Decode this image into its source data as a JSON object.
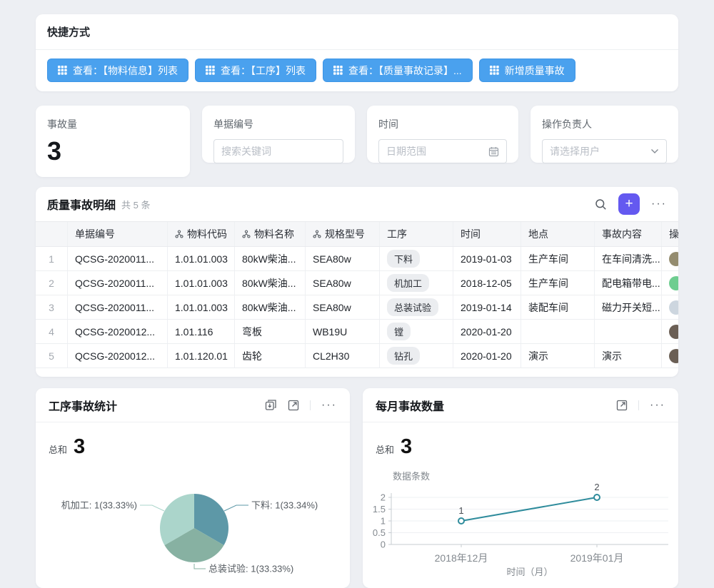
{
  "shortcuts": {
    "title": "快捷方式",
    "button_color": "#4aa1ee",
    "buttons": [
      {
        "icon": "grid-icon",
        "label": "查看：【物料信息】列表"
      },
      {
        "icon": "grid-icon",
        "label": "查看：【工序】列表"
      },
      {
        "icon": "grid-icon",
        "label": "查看：【质量事故记录】..."
      },
      {
        "icon": "grid-icon",
        "label": "新增质量事故"
      }
    ]
  },
  "filters": {
    "stat": {
      "label": "事故量",
      "value": "3"
    },
    "doc": {
      "label": "单据编号",
      "placeholder": "搜索关键词"
    },
    "time": {
      "label": "时间",
      "placeholder": "日期范围",
      "icon": "calendar-icon"
    },
    "owner": {
      "label": "操作负责人",
      "placeholder": "请选择用户",
      "icon": "chevron-down-icon"
    }
  },
  "table": {
    "title": "质量事故明细",
    "count": "共 5 条",
    "toolbar_icons": [
      "search-icon",
      "add-record-button",
      "more-icon"
    ],
    "add_label": "+",
    "more_glyph": "···",
    "columns": [
      {
        "label": "单据编号",
        "linked": false
      },
      {
        "label": "物料代码",
        "linked": true
      },
      {
        "label": "物料名称",
        "linked": true
      },
      {
        "label": "规格型号",
        "linked": true
      },
      {
        "label": "工序",
        "linked": false
      },
      {
        "label": "时间",
        "linked": false
      },
      {
        "label": "地点",
        "linked": false
      },
      {
        "label": "事故内容",
        "linked": false
      },
      {
        "label": "操作负责人",
        "linked": false
      }
    ],
    "rows": [
      {
        "num": "1",
        "doc": "QCSG-2020011...",
        "code": "1.01.01.003",
        "name": "80kW柴油...",
        "spec": "SEA80w",
        "process": "下料",
        "date": "2019-01-03",
        "place": "生产车间",
        "content": "在车间清洗...",
        "avatar_color": "#948c6f"
      },
      {
        "num": "2",
        "doc": "QCSG-2020011...",
        "code": "1.01.01.003",
        "name": "80kW柴油...",
        "spec": "SEA80w",
        "process": "机加工",
        "date": "2018-12-05",
        "place": "生产车间",
        "content": "配电箱带电...",
        "avatar_color": "#6ecd90"
      },
      {
        "num": "3",
        "doc": "QCSG-2020011...",
        "code": "1.01.01.003",
        "name": "80kW柴油...",
        "spec": "SEA80w",
        "process": "总装试验",
        "date": "2019-01-14",
        "place": "装配车间",
        "content": "磁力开关短...",
        "avatar_color": "#cdd6df"
      },
      {
        "num": "4",
        "doc": "QCSG-2020012...",
        "code": "1.01.116",
        "name": "弯板",
        "spec": "WB19U",
        "process": "镗",
        "date": "2020-01-20",
        "place": "",
        "content": "",
        "avatar_color": "#6b5f55"
      },
      {
        "num": "5",
        "doc": "QCSG-2020012...",
        "code": "1.01.120.01",
        "name": "齿轮",
        "spec": "CL2H30",
        "process": "钻孔",
        "date": "2020-01-20",
        "place": "演示",
        "content": "演示",
        "avatar_color": "#6b5f55"
      }
    ]
  },
  "pie_card": {
    "title": "工序事故统计",
    "tool_icons": [
      "download-icon",
      "open-in-new-icon",
      "more-icon"
    ],
    "more_glyph": "···",
    "total_label": "总和",
    "total": "3"
  },
  "line_card": {
    "title": "每月事故数量",
    "tool_icons": [
      "open-in-new-icon",
      "more-icon"
    ],
    "more_glyph": "···",
    "total_label": "总和",
    "total": "3"
  },
  "chart_data": [
    {
      "type": "pie",
      "title": "工序事故统计",
      "total": 3,
      "slices": [
        {
          "name": "下料",
          "value": 1,
          "pct": "33.34%",
          "label": "下料: 1(33.34%)",
          "color": "#5d98a7"
        },
        {
          "name": "总装试验",
          "value": 1,
          "pct": "33.33%",
          "label": "总装试验: 1(33.33%)",
          "color": "#87b1a2"
        },
        {
          "name": "机加工",
          "value": 1,
          "pct": "33.33%",
          "label": "机加工: 1(33.33%)",
          "color": "#abd5cb"
        }
      ],
      "legend_position": "outside-leader-lines"
    },
    {
      "type": "line",
      "title": "每月事故数量",
      "total": 3,
      "ylabel": "数据条数",
      "xlabel": "时间（月）",
      "x": [
        "2018年12月",
        "2019年01月"
      ],
      "values": [
        1,
        2
      ],
      "point_labels": [
        "1",
        "2"
      ],
      "yticks": [
        0,
        0.5,
        1,
        1.5,
        2
      ],
      "ylim": [
        0,
        2
      ],
      "grid": true,
      "line_color": "#2f8c9c"
    }
  ]
}
